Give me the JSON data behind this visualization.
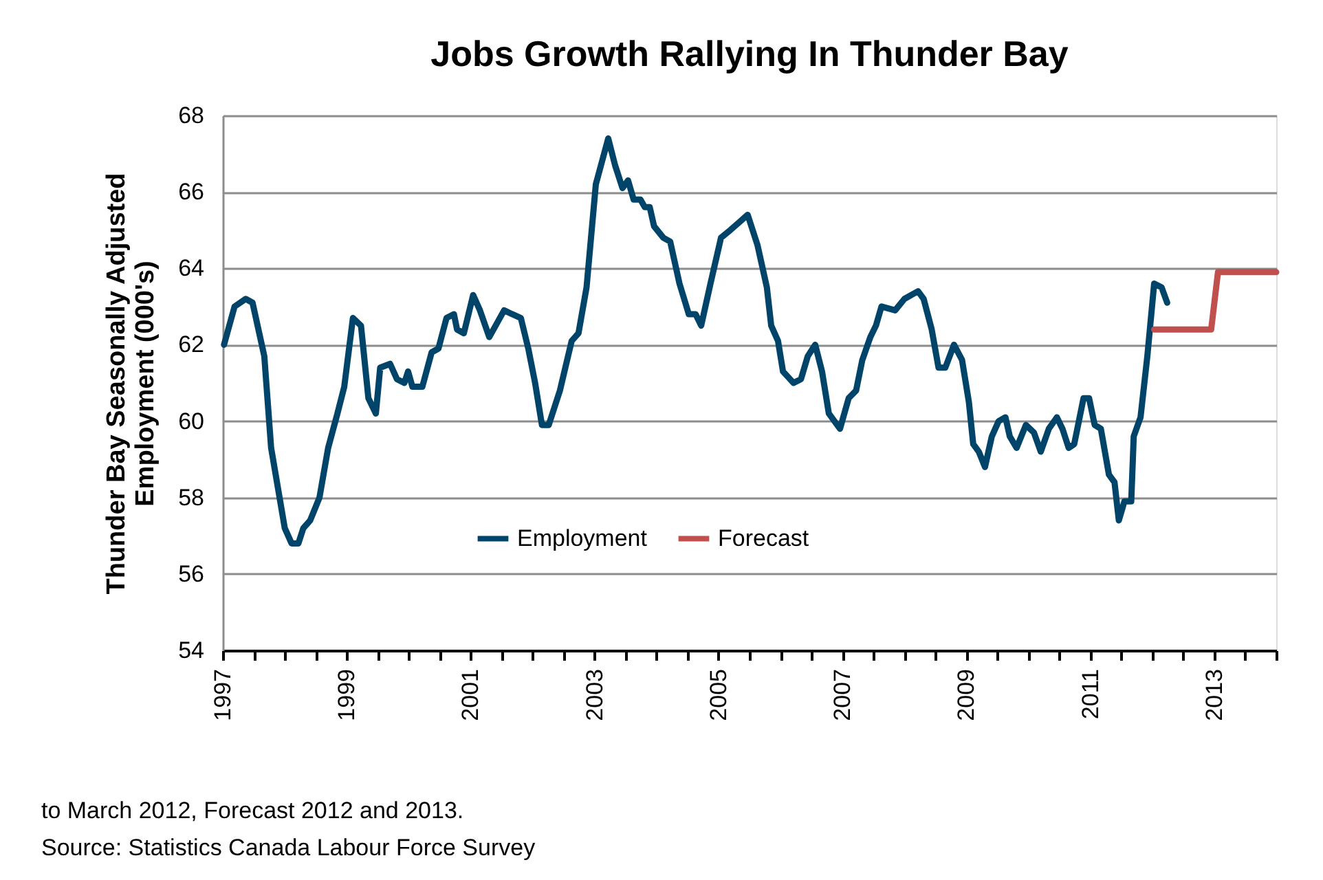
{
  "chart_data": {
    "type": "line",
    "title": "Jobs Growth Rallying In Thunder Bay",
    "ylabel": "Thunder Bay Seasonally Adjusted Employment (000's)",
    "annotations": [
      "to March 2012, Forecast 2012 and 2013.",
      "Source: Statistics Canada Labour Force Survey"
    ],
    "series": [
      {
        "name": "Employment",
        "color": "#00446a",
        "x": [
          1997.02,
          1997.19,
          1997.37,
          1997.48,
          1997.67,
          1997.78,
          1998.0,
          1998.11,
          1998.22,
          1998.3,
          1998.41,
          1998.56,
          1998.7,
          1998.85,
          1998.96,
          1999.1,
          1999.23,
          1999.35,
          1999.47,
          1999.54,
          1999.7,
          1999.81,
          1999.93,
          1999.99,
          2000.06,
          2000.22,
          2000.37,
          2000.48,
          2000.61,
          2000.73,
          2000.78,
          2000.89,
          2001.04,
          2001.15,
          2001.3,
          2001.54,
          2001.67,
          2001.81,
          2001.93,
          2002.04,
          2002.15,
          2002.26,
          2002.44,
          2002.63,
          2002.74,
          2002.87,
          2003.02,
          2003.22,
          2003.33,
          2003.45,
          2003.54,
          2003.63,
          2003.74,
          2003.81,
          2003.89,
          2003.96,
          2004.11,
          2004.22,
          2004.37,
          2004.52,
          2004.63,
          2004.72,
          2004.87,
          2005.04,
          2005.19,
          2005.33,
          2005.47,
          2005.63,
          2005.78,
          2005.85,
          2005.96,
          2006.04,
          2006.21,
          2006.33,
          2006.44,
          2006.56,
          2006.67,
          2006.78,
          2006.96,
          2007.1,
          2007.22,
          2007.32,
          2007.45,
          2007.54,
          2007.63,
          2007.85,
          2008.0,
          2008.11,
          2008.22,
          2008.31,
          2008.44,
          2008.55,
          2008.66,
          2008.8,
          2008.93,
          2009.04,
          2009.11,
          2009.2,
          2009.3,
          2009.41,
          2009.52,
          2009.63,
          2009.7,
          2009.81,
          2009.96,
          2010.09,
          2010.2,
          2010.33,
          2010.46,
          2010.55,
          2010.65,
          2010.74,
          2010.89,
          2010.98,
          2011.07,
          2011.17,
          2011.3,
          2011.39,
          2011.46,
          2011.55,
          2011.66,
          2011.7,
          2011.81,
          2011.92,
          2012.03,
          2012.15,
          2012.24
        ],
        "values": [
          62.0,
          63.0,
          63.2,
          63.1,
          61.7,
          59.3,
          57.2,
          56.8,
          56.8,
          57.2,
          57.4,
          58.0,
          59.3,
          60.2,
          60.9,
          62.7,
          62.5,
          60.6,
          60.2,
          61.4,
          61.5,
          61.1,
          61.0,
          61.3,
          60.9,
          60.9,
          61.8,
          61.9,
          62.7,
          62.8,
          62.4,
          62.3,
          63.3,
          62.9,
          62.2,
          62.9,
          62.8,
          62.7,
          61.9,
          61.0,
          59.9,
          59.9,
          60.8,
          62.1,
          62.3,
          63.5,
          66.2,
          67.4,
          66.7,
          66.1,
          66.3,
          65.8,
          65.8,
          65.6,
          65.6,
          65.1,
          64.8,
          64.7,
          63.6,
          62.8,
          62.8,
          62.5,
          63.6,
          64.8,
          65.0,
          65.2,
          65.4,
          64.6,
          63.5,
          62.5,
          62.1,
          61.3,
          61.0,
          61.1,
          61.7,
          62.0,
          61.3,
          60.2,
          59.8,
          60.6,
          60.8,
          61.6,
          62.2,
          62.5,
          63.0,
          62.9,
          63.2,
          63.3,
          63.4,
          63.2,
          62.4,
          61.4,
          61.4,
          62.0,
          61.6,
          60.5,
          59.4,
          59.2,
          58.8,
          59.6,
          60.0,
          60.1,
          59.6,
          59.3,
          59.9,
          59.7,
          59.2,
          59.8,
          60.1,
          59.8,
          59.3,
          59.4,
          60.6,
          60.6,
          59.9,
          59.8,
          58.6,
          58.4,
          57.4,
          57.9,
          57.9,
          59.6,
          60.1,
          61.7,
          63.6,
          63.5,
          63.1
        ]
      },
      {
        "name": "Forecast",
        "color": "#c0504d",
        "x": [
          2012.03,
          2012.95,
          2013.06,
          2014.0
        ],
        "values": [
          62.4,
          62.4,
          63.9,
          63.9
        ]
      }
    ],
    "xlim": [
      1997,
      2014
    ],
    "xticks": [
      1997,
      {
        "value": 1997.5,
        "label": null
      },
      {
        "value": 1998,
        "label": null
      },
      {
        "value": 1998.5,
        "label": null
      },
      1999,
      {
        "value": 1999.5,
        "label": null
      },
      {
        "value": 2000,
        "label": null
      },
      {
        "value": 2000.5,
        "label": null
      },
      2001,
      {
        "value": 2001.5,
        "label": null
      },
      {
        "value": 2002,
        "label": null
      },
      {
        "value": 2002.5,
        "label": null
      },
      2003,
      {
        "value": 2003.5,
        "label": null
      },
      {
        "value": 2004,
        "label": null
      },
      {
        "value": 2004.5,
        "label": null
      },
      2005,
      {
        "value": 2005.5,
        "label": null
      },
      {
        "value": 2006,
        "label": null
      },
      {
        "value": 2006.5,
        "label": null
      },
      2007,
      {
        "value": 2007.5,
        "label": null
      },
      {
        "value": 2008,
        "label": null
      },
      {
        "value": 2008.5,
        "label": null
      },
      2009,
      {
        "value": 2009.5,
        "label": null
      },
      {
        "value": 2010,
        "label": null
      },
      {
        "value": 2010.5,
        "label": null
      },
      2011,
      {
        "value": 2011.5,
        "label": null
      },
      {
        "value": 2012,
        "label": null
      },
      {
        "value": 2012.5,
        "label": null
      },
      2013,
      {
        "value": 2013.5,
        "label": null
      },
      {
        "value": 2014,
        "label": null
      }
    ],
    "ylim": [
      54,
      68
    ],
    "yticks": [
      54,
      56,
      58,
      60,
      62,
      64,
      66,
      68
    ],
    "grid": "y",
    "legend": "bottom",
    "marker": "none",
    "line_style": "solid"
  }
}
